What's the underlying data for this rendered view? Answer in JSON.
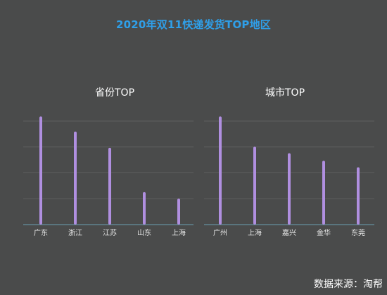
{
  "title": "2020年双11快递发货TOP地区",
  "source": "数据来源：淘帮",
  "colors": {
    "background": "#4a4b4b",
    "title": "#2f9fe8",
    "bar": "#b08fe0",
    "axis": "#6a9fb0",
    "grid": "#5e5f5f"
  },
  "chart_data": [
    {
      "type": "bar",
      "title": "省份TOP",
      "categories": [
        "广东",
        "浙江",
        "江苏",
        "山东",
        "上海"
      ],
      "values": [
        100,
        86,
        71,
        30,
        24
      ],
      "ylim": [
        0,
        110
      ],
      "grid": true,
      "legend": "none"
    },
    {
      "type": "bar",
      "title": "城市TOP",
      "categories": [
        "广州",
        "上海",
        "嘉兴",
        "金华",
        "东莞"
      ],
      "values": [
        100,
        72,
        66,
        59,
        53
      ],
      "ylim": [
        0,
        110
      ],
      "grid": true,
      "legend": "none"
    }
  ]
}
